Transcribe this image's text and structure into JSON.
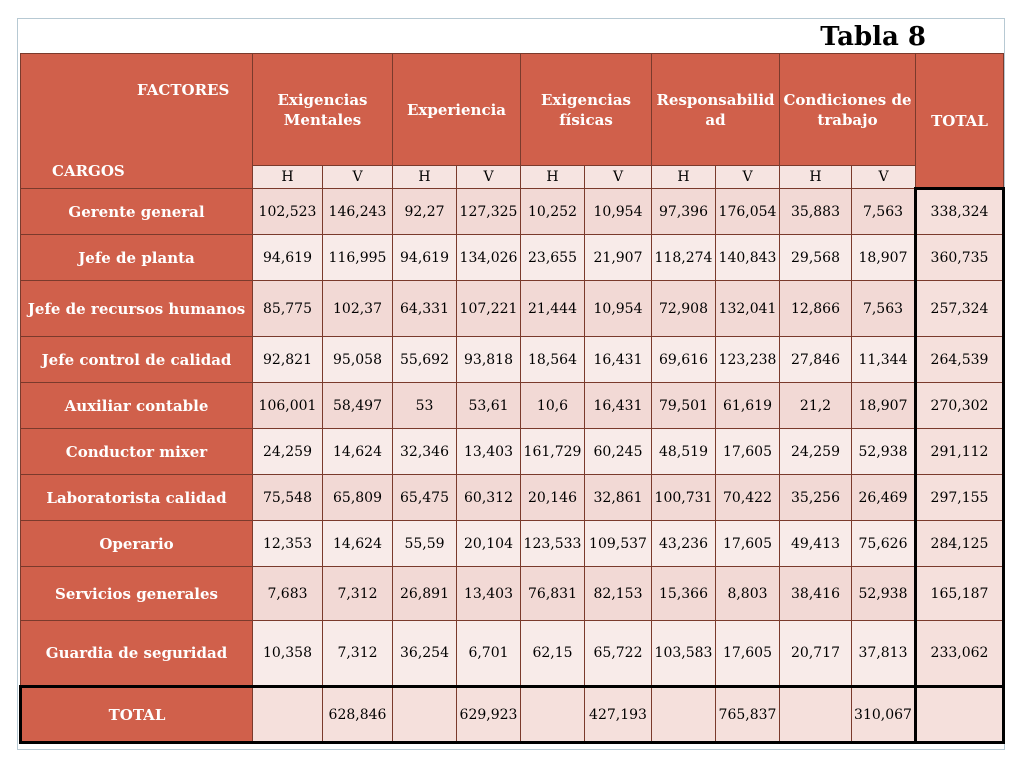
{
  "title": "Tabla 8",
  "corner": {
    "factores": "FACTORES",
    "cargos": "CARGOS"
  },
  "factors": [
    "Exigencias Mentales",
    "Experiencia",
    "Exigencias físicas",
    "Responsabilid ad",
    "Condiciones de trabajo"
  ],
  "total_label": "TOTAL",
  "hv": [
    "H",
    "V",
    "H",
    "V",
    "H",
    "V",
    "H",
    "V",
    "H",
    "V"
  ],
  "rows": [
    {
      "cargo": "Gerente general",
      "values": [
        "102,523",
        "146,243",
        "92,27",
        "127,325",
        "10,252",
        "10,954",
        "97,396",
        "176,054",
        "35,883",
        "7,563"
      ],
      "total": "338,324"
    },
    {
      "cargo": "Jefe de planta",
      "values": [
        "94,619",
        "116,995",
        "94,619",
        "134,026",
        "23,655",
        "21,907",
        "118,274",
        "140,843",
        "29,568",
        "18,907"
      ],
      "total": "360,735"
    },
    {
      "cargo": "Jefe de recursos humanos",
      "values": [
        "85,775",
        "102,37",
        "64,331",
        "107,221",
        "21,444",
        "10,954",
        "72,908",
        "132,041",
        "12,866",
        "7,563"
      ],
      "total": "257,324"
    },
    {
      "cargo": "Jefe control de calidad",
      "values": [
        "92,821",
        "95,058",
        "55,692",
        "93,818",
        "18,564",
        "16,431",
        "69,616",
        "123,238",
        "27,846",
        "11,344"
      ],
      "total": "264,539"
    },
    {
      "cargo": "Auxiliar contable",
      "values": [
        "106,001",
        "58,497",
        "53",
        "53,61",
        "10,6",
        "16,431",
        "79,501",
        "61,619",
        "21,2",
        "18,907"
      ],
      "total": "270,302"
    },
    {
      "cargo": "Conductor mixer",
      "values": [
        "24,259",
        "14,624",
        "32,346",
        "13,403",
        "161,729",
        "60,245",
        "48,519",
        "17,605",
        "24,259",
        "52,938"
      ],
      "total": "291,112"
    },
    {
      "cargo": "Laboratorista calidad",
      "values": [
        "75,548",
        "65,809",
        "65,475",
        "60,312",
        "20,146",
        "32,861",
        "100,731",
        "70,422",
        "35,256",
        "26,469"
      ],
      "total": "297,155"
    },
    {
      "cargo": "Operario",
      "values": [
        "12,353",
        "14,624",
        "55,59",
        "20,104",
        "123,533",
        "109,537",
        "43,236",
        "17,605",
        "49,413",
        "75,626"
      ],
      "total": "284,125"
    },
    {
      "cargo": "Servicios generales",
      "values": [
        "7,683",
        "7,312",
        "26,891",
        "13,403",
        "76,831",
        "82,153",
        "15,366",
        "8,803",
        "38,416",
        "52,938"
      ],
      "total": "165,187"
    },
    {
      "cargo": "Guardia de seguridad",
      "values": [
        "10,358",
        "7,312",
        "36,254",
        "6,701",
        "62,15",
        "65,722",
        "103,583",
        "17,605",
        "20,717",
        "37,813"
      ],
      "total": "233,062"
    }
  ],
  "totals_row": {
    "label": "TOTAL",
    "values": [
      "",
      "628,846",
      "",
      "629,923",
      "",
      "427,193",
      "",
      "765,837",
      "",
      "310,067"
    ],
    "total": ""
  }
}
